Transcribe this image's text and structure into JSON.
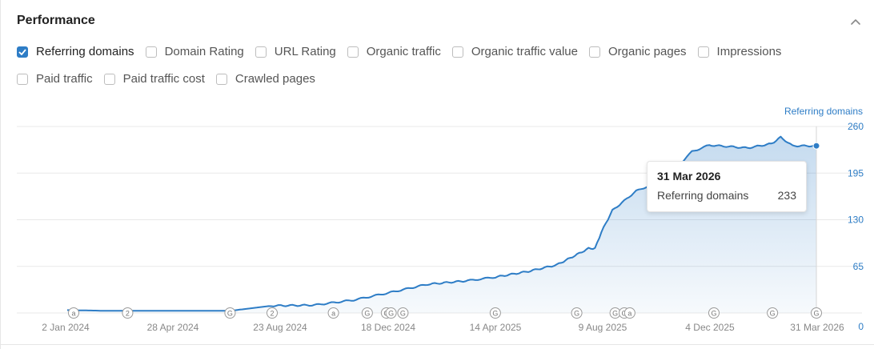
{
  "panel": {
    "title": "Performance"
  },
  "metrics": [
    {
      "label": "Referring domains",
      "checked": true
    },
    {
      "label": "Domain Rating",
      "checked": false
    },
    {
      "label": "URL Rating",
      "checked": false
    },
    {
      "label": "Organic traffic",
      "checked": false
    },
    {
      "label": "Organic traffic value",
      "checked": false
    },
    {
      "label": "Organic pages",
      "checked": false
    },
    {
      "label": "Impressions",
      "checked": false
    },
    {
      "label": "Paid traffic",
      "checked": false
    },
    {
      "label": "Paid traffic cost",
      "checked": false
    },
    {
      "label": "Crawled pages",
      "checked": false
    }
  ],
  "tooltip": {
    "date": "31 Mar 2026",
    "label": "Referring domains",
    "value": "233"
  },
  "chart_data": {
    "type": "area",
    "ylabel": "Referring domains",
    "ylim": [
      0,
      260
    ],
    "yticks": [
      "0",
      "65",
      "130",
      "195",
      "260"
    ],
    "xticks": [
      "2 Jan 2024",
      "28 Apr 2024",
      "23 Aug 2024",
      "18 Dec 2024",
      "14 Apr 2025",
      "9 Aug 2025",
      "4 Dec 2025",
      "31 Mar 2026"
    ],
    "grid": true,
    "color": "#2e7dc6",
    "series": [
      {
        "name": "Referring domains",
        "x": [
          "2024-01-02",
          "2024-02-15",
          "2024-03-31",
          "2024-05-15",
          "2024-06-28",
          "2024-08-12",
          "2024-09-28",
          "2024-11-10",
          "2024-12-18",
          "2025-01-30",
          "2025-03-15",
          "2025-04-14",
          "2025-05-20",
          "2025-06-20",
          "2025-07-10",
          "2025-07-25",
          "2025-08-01",
          "2025-08-08",
          "2025-08-20",
          "2025-09-15",
          "2025-10-15",
          "2025-11-01",
          "2025-11-15",
          "2025-12-04",
          "2026-01-15",
          "2026-02-10",
          "2026-02-20",
          "2026-03-05",
          "2026-03-31"
        ],
        "values": [
          4,
          3,
          3,
          3,
          3,
          10,
          11,
          18,
          28,
          40,
          45,
          50,
          58,
          67,
          80,
          90,
          90,
          113,
          143,
          170,
          186,
          206,
          225,
          234,
          230,
          236,
          245,
          233,
          233
        ]
      }
    ],
    "events": [
      {
        "date": "2024-01-09",
        "label": "a"
      },
      {
        "date": "2024-03-08",
        "label": "2"
      },
      {
        "date": "2024-06-28",
        "label": "G"
      },
      {
        "date": "2024-08-13",
        "label": "2"
      },
      {
        "date": "2024-10-19",
        "label": "a"
      },
      {
        "date": "2024-11-25",
        "label": "G"
      },
      {
        "date": "2024-12-16",
        "label": "G"
      },
      {
        "date": "2024-12-21",
        "label": "G"
      },
      {
        "date": "2025-01-03",
        "label": "G"
      },
      {
        "date": "2025-04-14",
        "label": "G"
      },
      {
        "date": "2025-07-12",
        "label": "G"
      },
      {
        "date": "2025-08-23",
        "label": "G"
      },
      {
        "date": "2025-09-02",
        "label": "G"
      },
      {
        "date": "2025-09-08",
        "label": "a"
      },
      {
        "date": "2025-12-09",
        "label": "G"
      },
      {
        "date": "2026-02-11",
        "label": "G"
      },
      {
        "date": "2026-03-31",
        "label": "G"
      }
    ]
  }
}
